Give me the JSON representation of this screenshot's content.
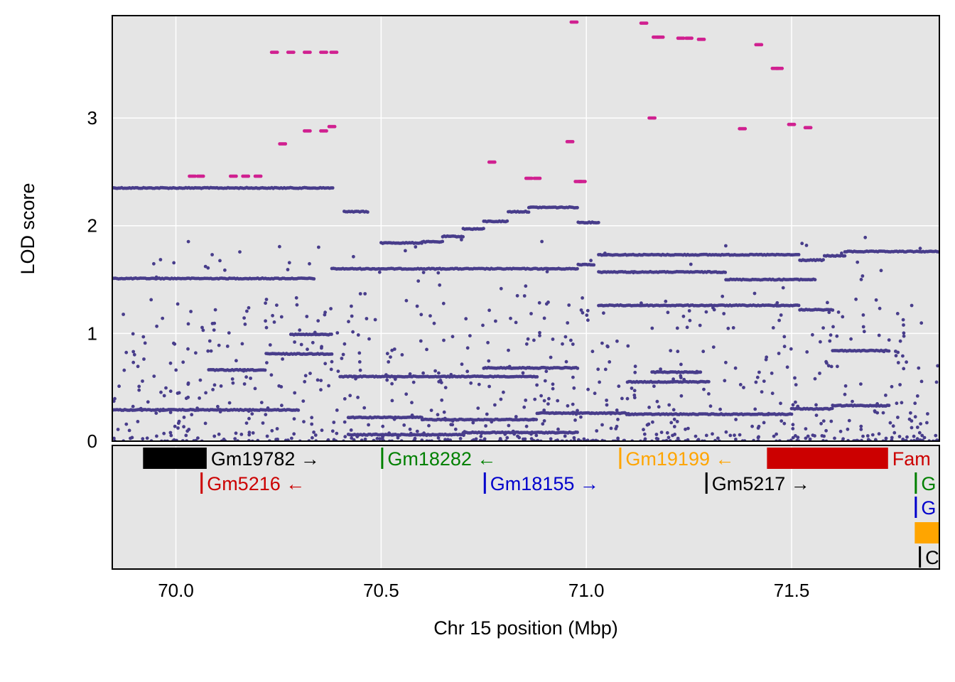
{
  "chart_data": {
    "type": "scatter",
    "xlabel": "Chr 15 position (Mbp)",
    "ylabel": "LOD score",
    "xlim": [
      69.845,
      71.86
    ],
    "ylim": [
      0,
      3.95
    ],
    "x_ticks": [
      70.0,
      70.5,
      71.0,
      71.5
    ],
    "x_tick_labels": [
      "70.0",
      "70.5",
      "71.0",
      "71.5"
    ],
    "y_ticks": [
      0,
      1,
      2,
      3
    ],
    "y_tick_labels": [
      "0",
      "1",
      "2",
      "3"
    ],
    "grid": true,
    "legend": "none",
    "colors": {
      "panel": "#e5e5e5",
      "grid": "#ffffff",
      "primary": "#483d8b",
      "highlight": "#d02090"
    },
    "series": [
      {
        "color": "#d02090",
        "points": [
          [
            70.04,
            2.46
          ],
          [
            70.06,
            2.46
          ],
          [
            70.14,
            2.46
          ],
          [
            70.17,
            2.46
          ],
          [
            70.2,
            2.46
          ],
          [
            70.24,
            3.61
          ],
          [
            70.28,
            3.61
          ],
          [
            70.32,
            3.61
          ],
          [
            70.36,
            3.61
          ],
          [
            70.385,
            3.61
          ],
          [
            70.26,
            2.76
          ],
          [
            70.32,
            2.88
          ],
          [
            70.36,
            2.88
          ],
          [
            70.38,
            2.92
          ],
          [
            70.77,
            2.59
          ],
          [
            70.86,
            2.44
          ],
          [
            70.88,
            2.44
          ],
          [
            70.96,
            2.78
          ],
          [
            70.97,
            3.89
          ],
          [
            70.98,
            2.41
          ],
          [
            70.99,
            2.41
          ],
          [
            71.14,
            3.88
          ],
          [
            71.16,
            3.0
          ],
          [
            71.17,
            3.75
          ],
          [
            71.18,
            3.75
          ],
          [
            71.23,
            3.74
          ],
          [
            71.25,
            3.74
          ],
          [
            71.28,
            3.73
          ],
          [
            71.38,
            2.9
          ],
          [
            71.42,
            3.68
          ],
          [
            71.46,
            3.46
          ],
          [
            71.47,
            3.46
          ],
          [
            71.5,
            2.94
          ],
          [
            71.54,
            2.91
          ]
        ]
      },
      {
        "color": "#483d8b",
        "segments": [
          {
            "x": [
              69.845,
              70.385
            ],
            "y": 2.35
          },
          {
            "x": [
              69.845,
              70.34
            ],
            "y": 1.51
          },
          {
            "x": [
              70.38,
              70.98
            ],
            "y": 1.6
          },
          {
            "x": [
              70.98,
              71.02
            ],
            "y": 1.64
          },
          {
            "x": [
              70.41,
              70.47
            ],
            "y": 2.13
          },
          {
            "x": [
              70.5,
              70.6
            ],
            "y": 1.84
          },
          {
            "x": [
              70.6,
              70.65
            ],
            "y": 1.85
          },
          {
            "x": [
              70.65,
              70.7
            ],
            "y": 1.9
          },
          {
            "x": [
              70.7,
              70.75
            ],
            "y": 1.97
          },
          {
            "x": [
              70.75,
              70.81
            ],
            "y": 2.04
          },
          {
            "x": [
              70.81,
              70.86
            ],
            "y": 2.13
          },
          {
            "x": [
              70.86,
              70.98
            ],
            "y": 2.17
          },
          {
            "x": [
              70.98,
              71.03
            ],
            "y": 2.03
          },
          {
            "x": [
              71.03,
              71.52
            ],
            "y": 1.73
          },
          {
            "x": [
              71.52,
              71.58
            ],
            "y": 1.68
          },
          {
            "x": [
              71.58,
              71.63
            ],
            "y": 1.72
          },
          {
            "x": [
              71.63,
              71.86
            ],
            "y": 1.76
          },
          {
            "x": [
              71.03,
              71.34
            ],
            "y": 1.57
          },
          {
            "x": [
              71.34,
              71.56
            ],
            "y": 1.5
          },
          {
            "x": [
              71.03,
              71.52
            ],
            "y": 1.26
          },
          {
            "x": [
              71.52,
              71.6
            ],
            "y": 1.22
          },
          {
            "x": [
              69.845,
              70.3
            ],
            "y": 0.29
          },
          {
            "x": [
              70.08,
              70.22
            ],
            "y": 0.66
          },
          {
            "x": [
              70.22,
              70.38
            ],
            "y": 0.81
          },
          {
            "x": [
              70.28,
              70.38
            ],
            "y": 0.99
          },
          {
            "x": [
              70.4,
              70.88
            ],
            "y": 0.6
          },
          {
            "x": [
              70.88,
              71.1
            ],
            "y": 0.26
          },
          {
            "x": [
              71.1,
              71.5
            ],
            "y": 0.25
          },
          {
            "x": [
              71.5,
              71.6
            ],
            "y": 0.3
          },
          {
            "x": [
              71.6,
              71.74
            ],
            "y": 0.33
          },
          {
            "x": [
              71.6,
              71.74
            ],
            "y": 0.84
          },
          {
            "x": [
              70.42,
              70.6
            ],
            "y": 0.22
          },
          {
            "x": [
              70.6,
              70.88
            ],
            "y": 0.2
          },
          {
            "x": [
              70.7,
              70.98
            ],
            "y": 0.08
          },
          {
            "x": [
              70.42,
              70.7
            ],
            "y": 0.06
          },
          {
            "x": [
              71.16,
              71.28
            ],
            "y": 0.64
          },
          {
            "x": [
              71.1,
              71.3
            ],
            "y": 0.55
          },
          {
            "x": [
              70.75,
              70.98
            ],
            "y": 0.68
          }
        ]
      }
    ],
    "genes": [
      {
        "name": "Gm19782",
        "start": 69.92,
        "end": 70.075,
        "strand": "→",
        "color": "#000000",
        "row": 0
      },
      {
        "name": "Gm18282",
        "start": 70.5,
        "end": 70.505,
        "strand": "←",
        "color": "#008000",
        "row": 0
      },
      {
        "name": "Gm19199",
        "start": 71.08,
        "end": 71.085,
        "strand": "←",
        "color": "#ffa500",
        "row": 0
      },
      {
        "name": "Fam",
        "start": 71.44,
        "end": 71.735,
        "strand": "",
        "color": "#cc0000",
        "row": 0
      },
      {
        "name": "Gm5216",
        "start": 70.06,
        "end": 70.065,
        "strand": "←",
        "color": "#cc0000",
        "row": 1
      },
      {
        "name": "Gm18155",
        "start": 70.75,
        "end": 70.755,
        "strand": "→",
        "color": "#0000cc",
        "row": 1
      },
      {
        "name": "Gm5217",
        "start": 71.29,
        "end": 71.295,
        "strand": "→",
        "color": "#000000",
        "row": 1
      },
      {
        "name": "G",
        "start": 71.8,
        "end": 71.805,
        "strand": "",
        "color": "#008000",
        "row": 1
      },
      {
        "name": "G",
        "start": 71.8,
        "end": 71.805,
        "strand": "",
        "color": "#0000cc",
        "row": 2
      },
      {
        "name": "",
        "start": 71.8,
        "end": 71.86,
        "strand": "",
        "color": "#ffa500",
        "row": 3
      },
      {
        "name": "C",
        "start": 71.81,
        "end": 71.815,
        "strand": "",
        "color": "#000000",
        "row": 4
      }
    ]
  }
}
